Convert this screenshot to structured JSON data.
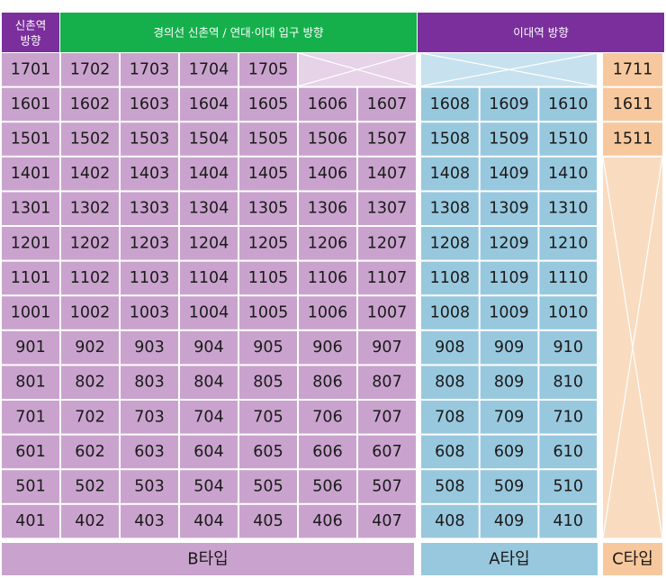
{
  "headers": {
    "corner": [
      "신촌역",
      "방향"
    ],
    "b_group": "경의선 신촌역 / 연대·이대 입구 방향",
    "a_group": "이대역 방향"
  },
  "footer": {
    "b_type": "B타입",
    "a_type": "A타입",
    "c_type": "C타입"
  },
  "colors": {
    "b_type": "#c9a3cd",
    "a_type": "#98c8de",
    "c_type": "#f7c89d",
    "c_empty": "#f9dcc0",
    "a_empty": "#c7e2ee",
    "b_empty": "#e6d3e8",
    "header_green": "#15b04c",
    "header_purple": "#7a2f9c",
    "footer_b": "#c9a3cd",
    "footer_a": "#98c8de",
    "footer_c": "#f7c89d"
  },
  "rows": [
    {
      "b": [
        "1701",
        "1702",
        "1703",
        "1704",
        "1705"
      ],
      "a": [],
      "c": "1711"
    },
    {
      "b": [
        "1601",
        "1602",
        "1603",
        "1604",
        "1605",
        "1606",
        "1607"
      ],
      "a": [
        "1608",
        "1609",
        "1610"
      ],
      "c": "1611"
    },
    {
      "b": [
        "1501",
        "1502",
        "1503",
        "1504",
        "1505",
        "1506",
        "1507"
      ],
      "a": [
        "1508",
        "1509",
        "1510"
      ],
      "c": "1511"
    },
    {
      "b": [
        "1401",
        "1402",
        "1403",
        "1404",
        "1405",
        "1406",
        "1407"
      ],
      "a": [
        "1408",
        "1409",
        "1410"
      ],
      "c": ""
    },
    {
      "b": [
        "1301",
        "1302",
        "1303",
        "1304",
        "1305",
        "1306",
        "1307"
      ],
      "a": [
        "1308",
        "1309",
        "1310"
      ],
      "c": ""
    },
    {
      "b": [
        "1201",
        "1202",
        "1203",
        "1204",
        "1205",
        "1206",
        "1207"
      ],
      "a": [
        "1208",
        "1209",
        "1210"
      ],
      "c": ""
    },
    {
      "b": [
        "1101",
        "1102",
        "1103",
        "1104",
        "1105",
        "1106",
        "1107"
      ],
      "a": [
        "1108",
        "1109",
        "1110"
      ],
      "c": ""
    },
    {
      "b": [
        "1001",
        "1002",
        "1003",
        "1004",
        "1005",
        "1006",
        "1007"
      ],
      "a": [
        "1008",
        "1009",
        "1010"
      ],
      "c": ""
    },
    {
      "b": [
        "901",
        "902",
        "903",
        "904",
        "905",
        "906",
        "907"
      ],
      "a": [
        "908",
        "909",
        "910"
      ],
      "c": ""
    },
    {
      "b": [
        "801",
        "802",
        "803",
        "804",
        "805",
        "806",
        "807"
      ],
      "a": [
        "808",
        "809",
        "810"
      ],
      "c": ""
    },
    {
      "b": [
        "701",
        "702",
        "703",
        "704",
        "705",
        "706",
        "707"
      ],
      "a": [
        "708",
        "709",
        "710"
      ],
      "c": ""
    },
    {
      "b": [
        "601",
        "602",
        "603",
        "604",
        "605",
        "606",
        "607"
      ],
      "a": [
        "608",
        "609",
        "610"
      ],
      "c": ""
    },
    {
      "b": [
        "501",
        "502",
        "503",
        "504",
        "505",
        "506",
        "507"
      ],
      "a": [
        "508",
        "509",
        "510"
      ],
      "c": ""
    },
    {
      "b": [
        "401",
        "402",
        "403",
        "404",
        "405",
        "406",
        "407"
      ],
      "a": [
        "408",
        "409",
        "410"
      ],
      "c": ""
    }
  ]
}
